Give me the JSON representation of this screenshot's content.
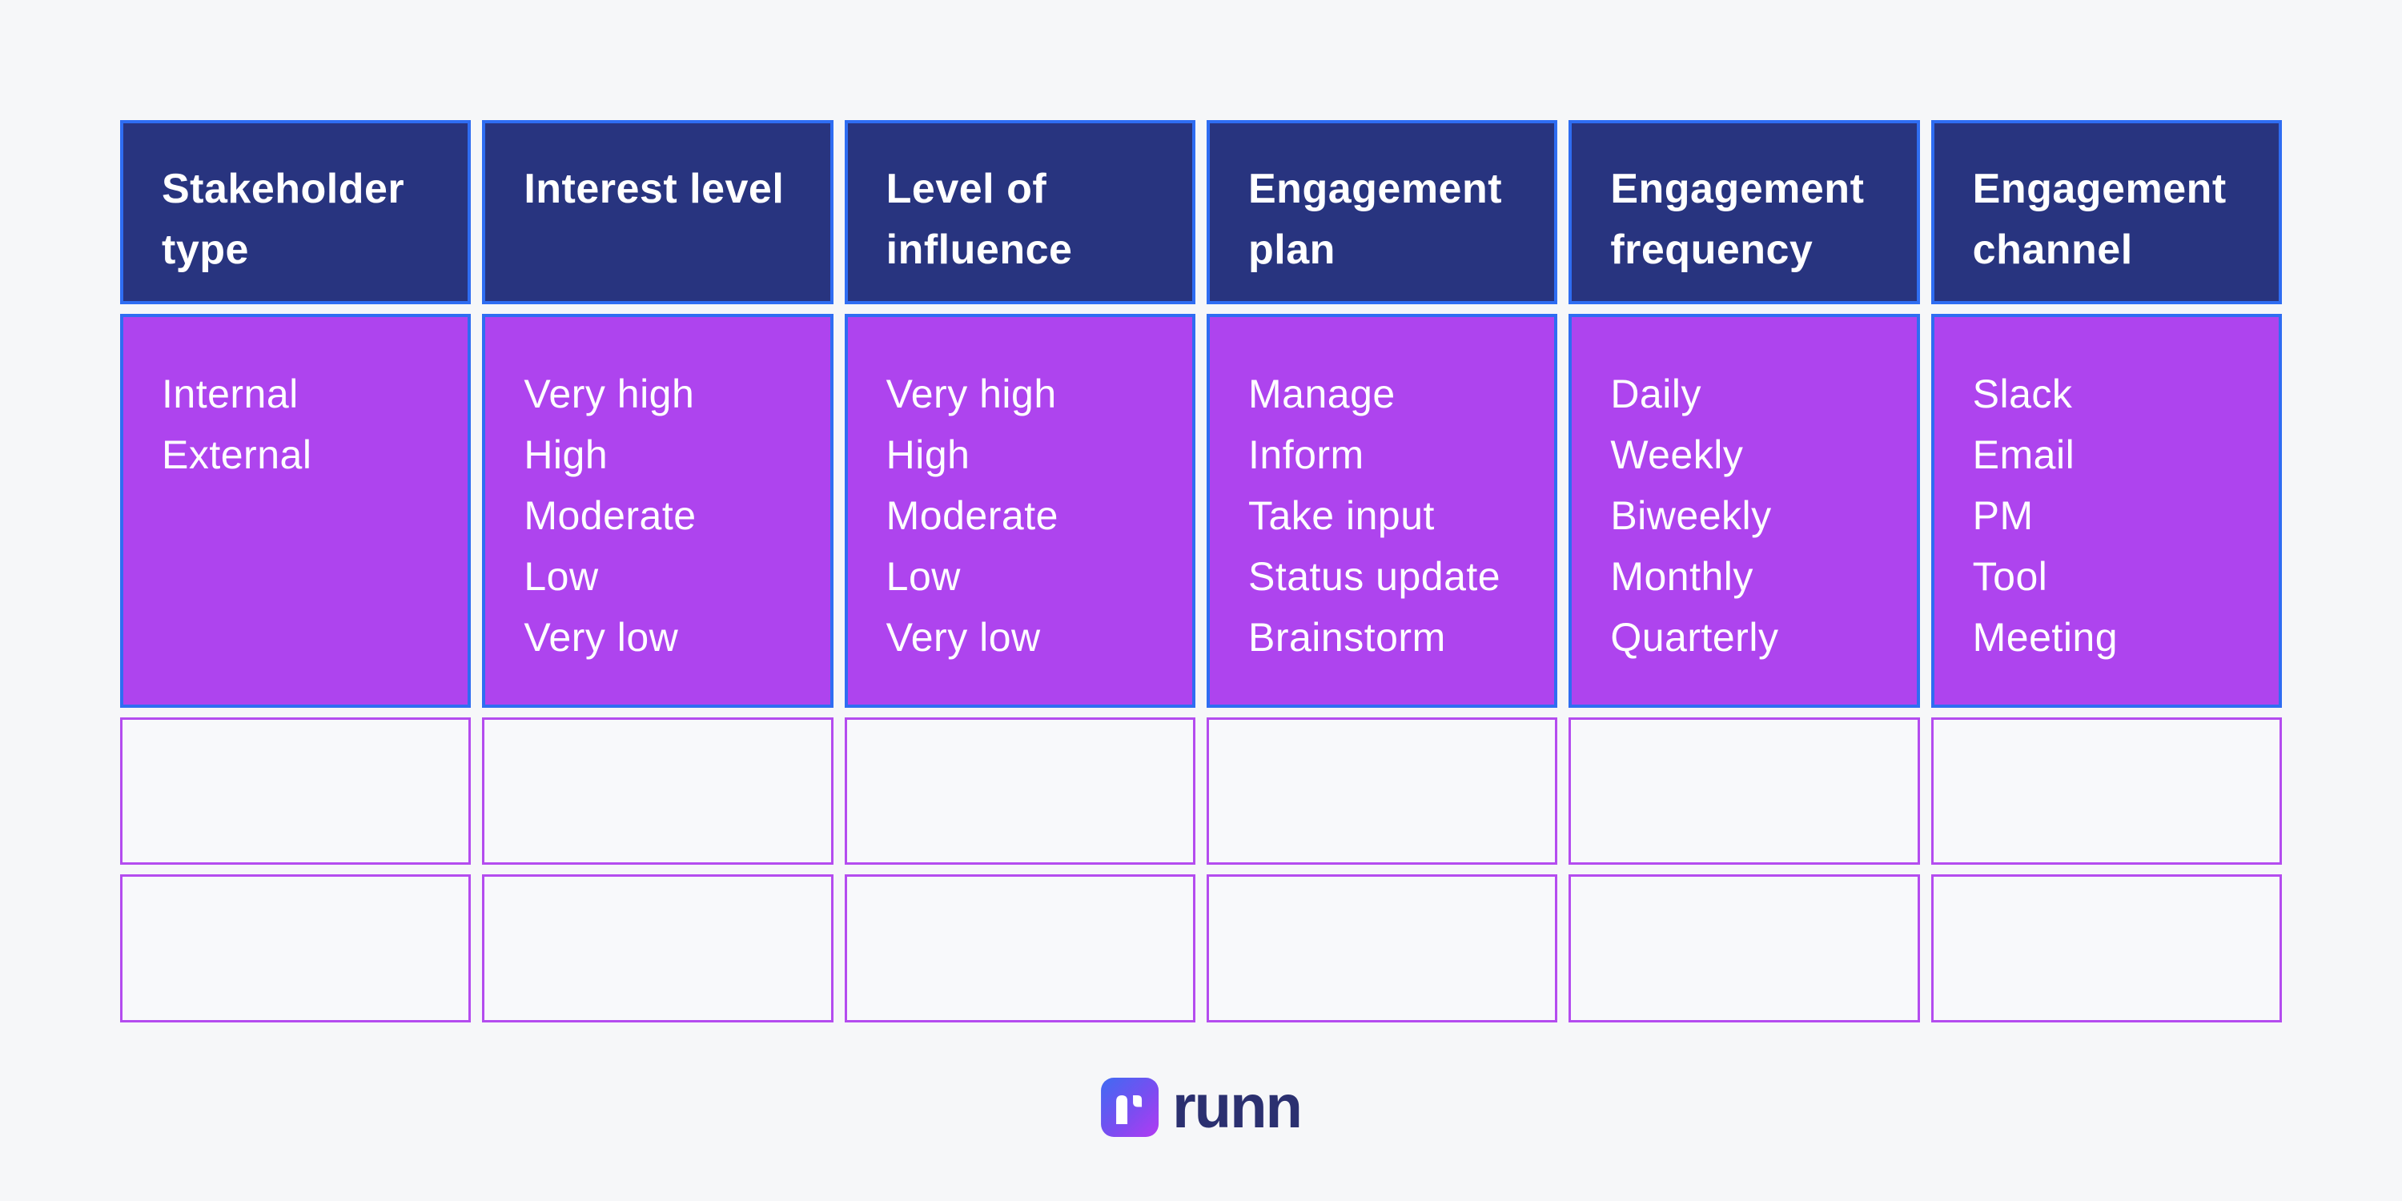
{
  "table": {
    "columns": [
      {
        "header": "Stakeholder type",
        "options": [
          "Internal",
          "External"
        ]
      },
      {
        "header": "Interest level",
        "options": [
          "Very high",
          "High",
          "Moderate",
          "Low",
          "Very low"
        ]
      },
      {
        "header": "Level of influence",
        "options": [
          "Very high",
          "High",
          "Moderate",
          "Low",
          "Very low"
        ]
      },
      {
        "header": "Engagement plan",
        "options": [
          "Manage",
          "Inform",
          "Take input",
          "Status update",
          "Brainstorm"
        ]
      },
      {
        "header": "Engagement frequency",
        "options": [
          "Daily",
          "Weekly",
          "Biweekly",
          "Monthly",
          "Quarterly"
        ]
      },
      {
        "header": "Engagement channel",
        "options": [
          "Slack",
          "Email",
          "PM",
          "Tool",
          "Meeting"
        ]
      }
    ],
    "empty_rows": 2
  },
  "branding": {
    "logo_text": "runn"
  },
  "colors": {
    "page_bg": "#f6f7f9",
    "header_bg": "#28347f",
    "header_border": "#2f6df2",
    "option_bg": "#ae44ee",
    "option_border": "#2f6df2",
    "empty_cell_bg": "#f8f9fb",
    "empty_cell_border": "#b44cef",
    "cell_text": "#ffffff",
    "logo_text": "#2b3070",
    "logo_gradient_start": "#3f6bf2",
    "logo_gradient_end": "#b23bf2"
  }
}
